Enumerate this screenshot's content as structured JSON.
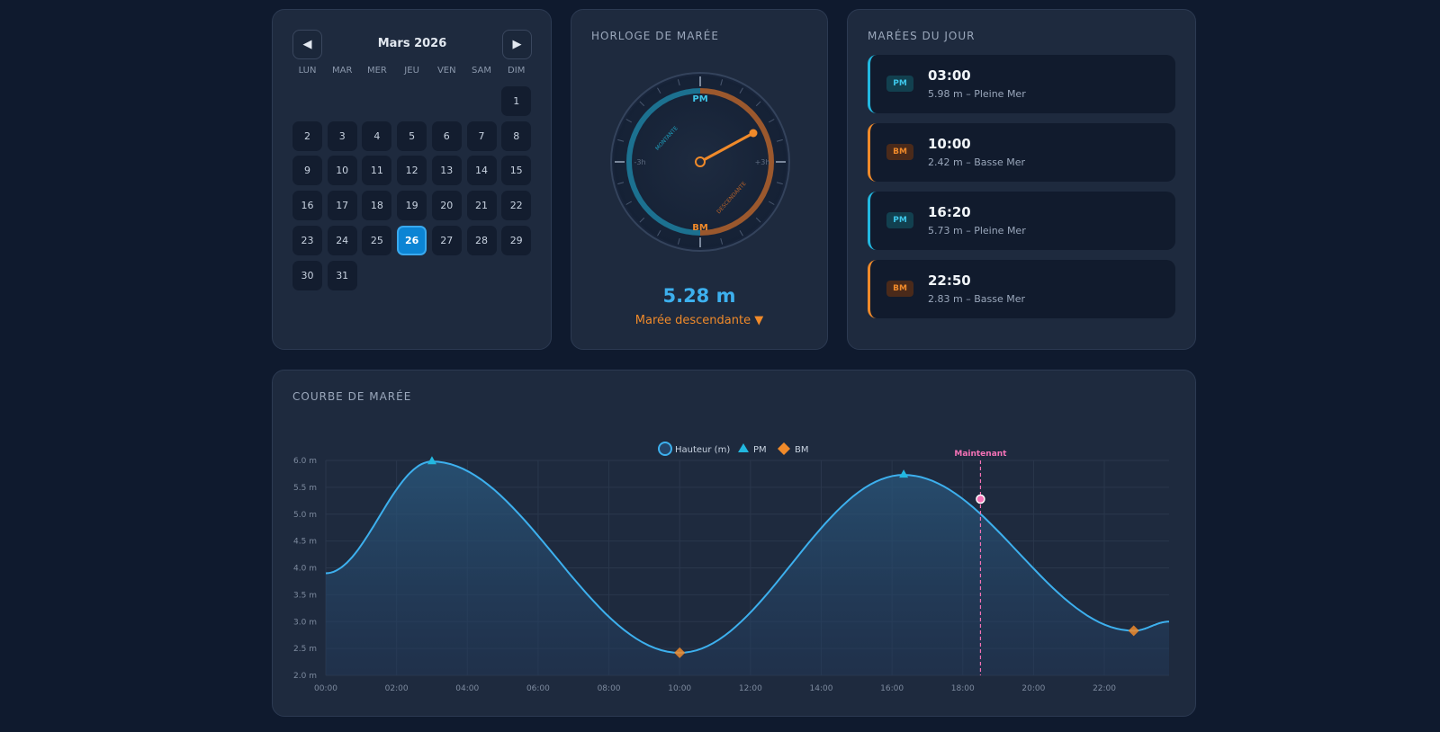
{
  "calendar": {
    "month": "Mars 2026",
    "prev_label": "◀",
    "next_label": "▶",
    "weekdays": [
      "LUN",
      "MAR",
      "MER",
      "JEU",
      "VEN",
      "SAM",
      "DIM"
    ],
    "first_weekday_index": 6,
    "days_in_month": 31,
    "selected_day": 26
  },
  "clock": {
    "title": "HORLOGE DE MARÉE",
    "top_label": "PM",
    "bottom_label": "BM",
    "left_label": "-3h",
    "right_label": "+3h",
    "rising_label": "MONTANTE",
    "falling_label": "DESCENDANTE",
    "height": "5.28 m",
    "status": "Marée descendante ▼"
  },
  "tides": {
    "title": "MARÉES DU JOUR",
    "items": [
      {
        "type": "pm",
        "badge": "PM",
        "time": "03:00",
        "desc": "5.98 m – Pleine Mer"
      },
      {
        "type": "bm",
        "badge": "BM",
        "time": "10:00",
        "desc": "2.42 m – Basse Mer"
      },
      {
        "type": "pm",
        "badge": "PM",
        "time": "16:20",
        "desc": "5.73 m – Pleine Mer"
      },
      {
        "type": "bm",
        "badge": "BM",
        "time": "22:50",
        "desc": "2.83 m – Basse Mer"
      }
    ]
  },
  "chart_data": {
    "type": "area",
    "title": "COURBE DE MARÉE",
    "legend": [
      "Hauteur (m)",
      "PM",
      "BM"
    ],
    "legend_position": "top-center",
    "x_ticks": [
      "00:00",
      "02:00",
      "04:00",
      "06:00",
      "08:00",
      "10:00",
      "12:00",
      "14:00",
      "16:00",
      "18:00",
      "20:00",
      "22:00"
    ],
    "y_ticks": [
      "6.0 m",
      "5.5 m",
      "5.0 m",
      "4.5 m",
      "4.0 m",
      "3.5 m",
      "3.0 m",
      "2.5 m",
      "2.0 m"
    ],
    "ylim": [
      2.0,
      6.0
    ],
    "xlim_hours": [
      0,
      23.83
    ],
    "grid": true,
    "series": [
      {
        "name": "Hauteur (m)",
        "points": [
          [
            0,
            3.9
          ],
          [
            3,
            5.98
          ],
          [
            10,
            2.42
          ],
          [
            16.33,
            5.73
          ],
          [
            22.83,
            2.83
          ],
          [
            23.83,
            3.0
          ]
        ]
      }
    ],
    "pm_points": [
      [
        3,
        5.98
      ],
      [
        16.33,
        5.73
      ]
    ],
    "bm_points": [
      [
        10,
        2.42
      ],
      [
        22.83,
        2.83
      ]
    ],
    "now": {
      "label": "Maintenant",
      "hour": 18.5,
      "height": 5.28
    },
    "colors": {
      "line": "#3db0ee",
      "pm": "#22b8e0",
      "bm": "#f08a2a",
      "now": "#f472b6"
    }
  }
}
